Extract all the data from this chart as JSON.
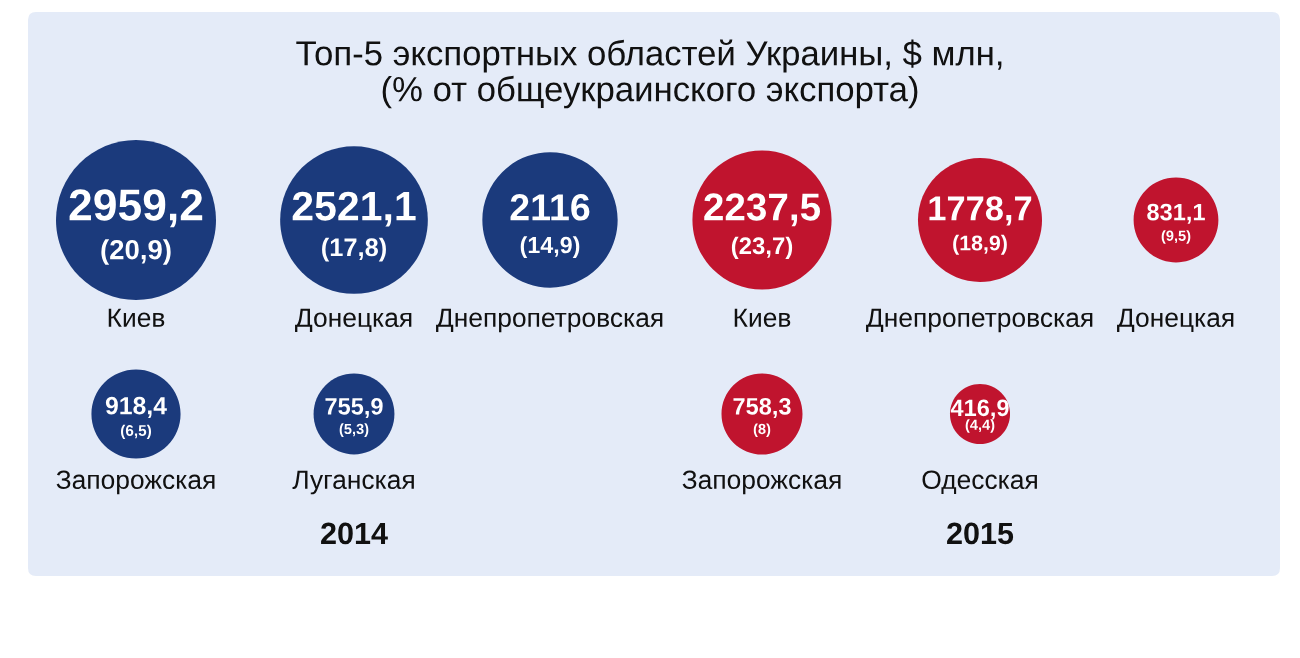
{
  "chart_data": [
    {
      "type": "other",
      "title": "Топ-5 экспортных областей Украины, $ млн,",
      "subtitle": "(% от общеукраинского экспорта)",
      "xlabel": "2014",
      "categories": [
        "Киев",
        "Донецкая",
        "Днепропетровская",
        "Запорожская",
        "Луганская"
      ],
      "series": [
        {
          "color": "#1b3a7c",
          "values": [
            2959.2,
            2521.1,
            2116,
            918.4,
            755.9
          ],
          "value_labels": [
            "2959,2",
            "2521,1",
            "2116",
            "918,4",
            "755,9"
          ]
        },
        {
          "values": [
            20.9,
            17.8,
            14.9,
            6.5,
            5.3
          ],
          "value_labels": [
            "(20,9)",
            "(17,8)",
            "(14,9)",
            "(6,5)",
            "(5,3)"
          ]
        }
      ]
    },
    {
      "type": "other",
      "xlabel": "2015",
      "categories": [
        "Киев",
        "Днепропетровская",
        "Донецкая",
        "Запорожская",
        "Одесская"
      ],
      "series": [
        {
          "color": "#c0142e",
          "values": [
            2237.5,
            1778.7,
            831.1,
            758.3,
            416.9
          ],
          "value_labels": [
            "2237,5",
            "1778,7",
            "831,1",
            "758,3",
            "416,9"
          ]
        },
        {
          "values": [
            23.7,
            18.9,
            9.5,
            8,
            4.4
          ],
          "value_labels": [
            "(23,7)",
            "(18,9)",
            "(9,5)",
            "(8)",
            "(4,4)"
          ]
        }
      ]
    }
  ]
}
